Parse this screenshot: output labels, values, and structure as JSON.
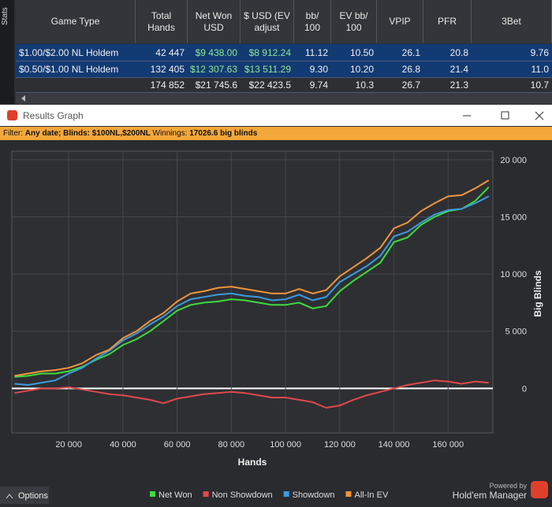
{
  "side_tab": "Stats",
  "table": {
    "headers": [
      "Game Type",
      "Total Hands",
      "Net Won USD",
      "$ USD (EV adjust",
      "bb/ 100",
      "EV bb/ 100",
      "VPIP",
      "PFR",
      "3Bet"
    ],
    "rows": [
      [
        "$1.00/$2.00 NL Holdem",
        "42 447",
        "$9 438.00",
        "$8 912.24",
        "11.12",
        "10.50",
        "26.1",
        "20.8",
        "9.76"
      ],
      [
        "$0.50/$1.00 NL Holdem",
        "132 405",
        "$12 307.63",
        "$13 511.29",
        "9.30",
        "10.20",
        "26.8",
        "21.4",
        "11.0"
      ],
      [
        null,
        "174 852",
        "$21 745.6",
        "$22 423.5",
        "9.74",
        "10.3",
        "26.7",
        "21.3",
        "10.7"
      ]
    ]
  },
  "window": {
    "title": "Results Graph"
  },
  "filter": {
    "label": "Filter:",
    "value": "Any date; Blinds: $100NL,$200NL",
    "winnings_label": "Winnings:",
    "winnings": "17026.6 big blinds"
  },
  "chart_data": {
    "type": "line",
    "xlabel": "Hands",
    "ylabel": "Big Blinds",
    "x": [
      0,
      5000,
      10000,
      15000,
      20000,
      25000,
      30000,
      35000,
      40000,
      45000,
      50000,
      55000,
      60000,
      65000,
      70000,
      75000,
      80000,
      85000,
      90000,
      95000,
      100000,
      105000,
      110000,
      115000,
      120000,
      125000,
      130000,
      135000,
      140000,
      145000,
      150000,
      155000,
      160000,
      165000,
      170000,
      175000
    ],
    "series": [
      {
        "name": "Net Won",
        "color": "#3ddc3d",
        "values": [
          1000,
          1100,
          1300,
          1300,
          1500,
          1900,
          2500,
          3000,
          3800,
          4300,
          5000,
          5900,
          6800,
          7300,
          7500,
          7600,
          7800,
          7700,
          7500,
          7300,
          7300,
          7500,
          7000,
          7200,
          8500,
          9400,
          10200,
          11000,
          12800,
          13200,
          14300,
          15000,
          15500,
          15700,
          16400,
          17600
        ]
      },
      {
        "name": "Non Showdown",
        "color": "#e0484a",
        "values": [
          -400,
          -200,
          0,
          0,
          100,
          -100,
          -300,
          -500,
          -600,
          -800,
          -1000,
          -1300,
          -900,
          -700,
          -500,
          -400,
          -300,
          -400,
          -600,
          -800,
          -800,
          -1000,
          -1200,
          -1700,
          -1500,
          -1000,
          -600,
          -300,
          0,
          300,
          500,
          700,
          600,
          400,
          600,
          500
        ]
      },
      {
        "name": "Showdown",
        "color": "#3b9be0",
        "values": [
          400,
          300,
          500,
          700,
          1300,
          1800,
          2600,
          3300,
          4200,
          4800,
          5600,
          6300,
          7200,
          7800,
          8000,
          8200,
          8300,
          8100,
          8000,
          7700,
          7800,
          8200,
          7700,
          8000,
          9300,
          10000,
          10700,
          11600,
          13300,
          13700,
          14500,
          15200,
          15600,
          15700,
          16200,
          16800
        ]
      },
      {
        "name": "All-In EV",
        "color": "#f0953a",
        "values": [
          1100,
          1300,
          1500,
          1600,
          1800,
          2200,
          2900,
          3400,
          4400,
          5000,
          5900,
          6600,
          7600,
          8300,
          8500,
          8800,
          8900,
          8700,
          8500,
          8300,
          8300,
          8700,
          8300,
          8600,
          9800,
          10600,
          11400,
          12300,
          14000,
          14500,
          15500,
          16200,
          16800,
          16900,
          17500,
          18200
        ]
      }
    ],
    "xlim": [
      -1000,
      176500
    ],
    "ylim": [
      -3900,
      20750
    ],
    "xticks": [
      {
        "value": 20000,
        "label": "20 000"
      },
      {
        "value": 40000,
        "label": "40 000"
      },
      {
        "value": 60000,
        "label": "60 000"
      },
      {
        "value": 80000,
        "label": "80 000"
      },
      {
        "value": 100000,
        "label": "100 000"
      },
      {
        "value": 120000,
        "label": "120 000"
      },
      {
        "value": 140000,
        "label": "140 000"
      },
      {
        "value": 160000,
        "label": "160 000"
      }
    ],
    "yticks": [
      0,
      {
        "value": 5000,
        "label": "5 000"
      },
      {
        "value": 10000,
        "label": "10 000"
      },
      {
        "value": 15000,
        "label": "15 000"
      },
      {
        "value": 20000,
        "label": "20 000"
      }
    ],
    "grid": true,
    "legend": "bottom"
  },
  "footer": {
    "options": "Options",
    "powered_by": "Powered by",
    "brand": "Hold'em Manager"
  }
}
